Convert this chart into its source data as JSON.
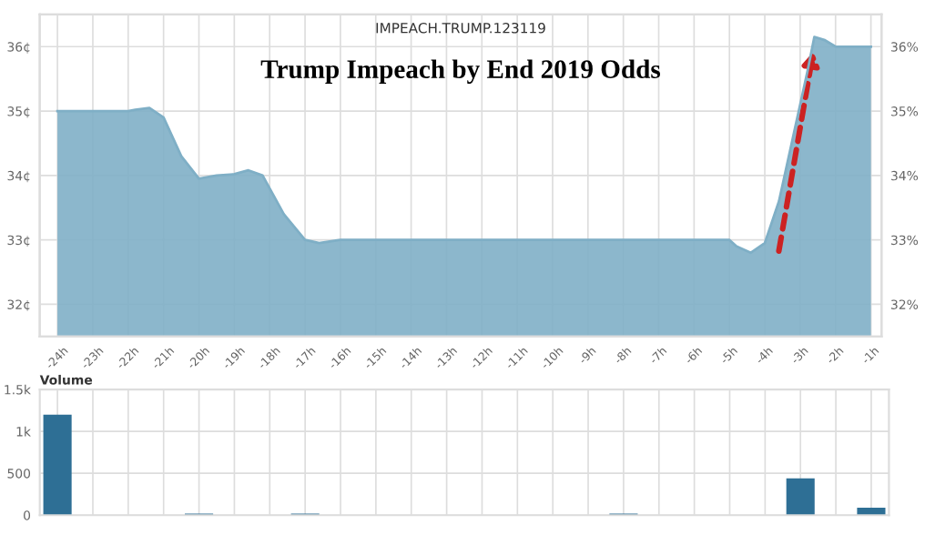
{
  "chart_data": [
    {
      "type": "area",
      "subtitle": "IMPEACH.TRUMP.123119",
      "title": "Trump Impeach by End 2019 Odds",
      "x": [
        -24,
        -23,
        -22,
        -21.8,
        -21.4,
        -21,
        -20.5,
        -20,
        -19.5,
        -19,
        -18.6,
        -18.2,
        -17.6,
        -17,
        -16.6,
        -16,
        -15,
        -10,
        -5,
        -4.8,
        -4.4,
        -4,
        -3.6,
        -3.2,
        -2.8,
        -2.6,
        -2.3,
        -2,
        -1
      ],
      "series": [
        {
          "color": "#7fafc6",
          "values": [
            35,
            35,
            35,
            35.02,
            35.05,
            34.9,
            34.3,
            33.95,
            34,
            34.02,
            34.08,
            34.0,
            33.4,
            33.0,
            32.95,
            33,
            33,
            33,
            33,
            32.9,
            32.8,
            32.95,
            33.6,
            34.6,
            35.6,
            36.15,
            36.1,
            36,
            36
          ]
        }
      ],
      "xlim": [
        -24.5,
        -0.7
      ],
      "ylim": [
        31.5,
        36.5
      ],
      "xticks": [
        {
          "value": -24,
          "label": "-24h"
        },
        {
          "value": -23,
          "label": "-23h"
        },
        {
          "value": -22,
          "label": "-22h"
        },
        {
          "value": -21,
          "label": "-21h"
        },
        {
          "value": -20,
          "label": "-20h"
        },
        {
          "value": -19,
          "label": "-19h"
        },
        {
          "value": -18,
          "label": "-18h"
        },
        {
          "value": -17,
          "label": "-17h"
        },
        {
          "value": -16,
          "label": "-16h"
        },
        {
          "value": -15,
          "label": "-15h"
        },
        {
          "value": -14,
          "label": "-14h"
        },
        {
          "value": -13,
          "label": "-13h"
        },
        {
          "value": -12,
          "label": "-12h"
        },
        {
          "value": -11,
          "label": "-11h"
        },
        {
          "value": -10,
          "label": "-10h"
        },
        {
          "value": -9,
          "label": "-9h"
        },
        {
          "value": -8,
          "label": "-8h"
        },
        {
          "value": -7,
          "label": "-7h"
        },
        {
          "value": -6,
          "label": "-6h"
        },
        {
          "value": -5,
          "label": "-5h"
        },
        {
          "value": -4,
          "label": "-4h"
        },
        {
          "value": -3,
          "label": "-3h"
        },
        {
          "value": -2,
          "label": "-2h"
        },
        {
          "value": -1,
          "label": "-1h"
        }
      ],
      "yticks": [
        {
          "value": 32,
          "label": "32¢"
        },
        {
          "value": 33,
          "label": "33¢"
        },
        {
          "value": 34,
          "label": "34¢"
        },
        {
          "value": 35,
          "label": "35¢"
        },
        {
          "value": 36,
          "label": "36¢"
        }
      ],
      "y2lim": [
        31.5,
        36.5
      ],
      "y2ticks": [
        {
          "value": 32,
          "label": "32%"
        },
        {
          "value": 33,
          "label": "33%"
        },
        {
          "value": 34,
          "label": "34%"
        },
        {
          "value": 35,
          "label": "35%"
        },
        {
          "value": 36,
          "label": "36%"
        }
      ],
      "grid": true
    },
    {
      "type": "bar",
      "title": "Volume",
      "categories": [
        null,
        null,
        null,
        null,
        null,
        null,
        null,
        null,
        null,
        null,
        null,
        null,
        null,
        null,
        null,
        null,
        null,
        null,
        null,
        null,
        null,
        null,
        null,
        null
      ],
      "series": [
        {
          "color": "#2e6f95",
          "values": [
            1200,
            0,
            0,
            0,
            20,
            0,
            0,
            20,
            0,
            0,
            0,
            0,
            0,
            0,
            0,
            0,
            20,
            0,
            0,
            0,
            0,
            440,
            0,
            90
          ]
        }
      ],
      "ylim": [
        0,
        1500
      ],
      "yticks": [
        {
          "value": 0,
          "label": "0"
        },
        {
          "value": 500,
          "label": "500"
        },
        {
          "value": 1000,
          "label": "1k"
        },
        {
          "value": 1500,
          "label": "1.5k"
        }
      ],
      "tick_labels": "y",
      "grid": true
    }
  ]
}
